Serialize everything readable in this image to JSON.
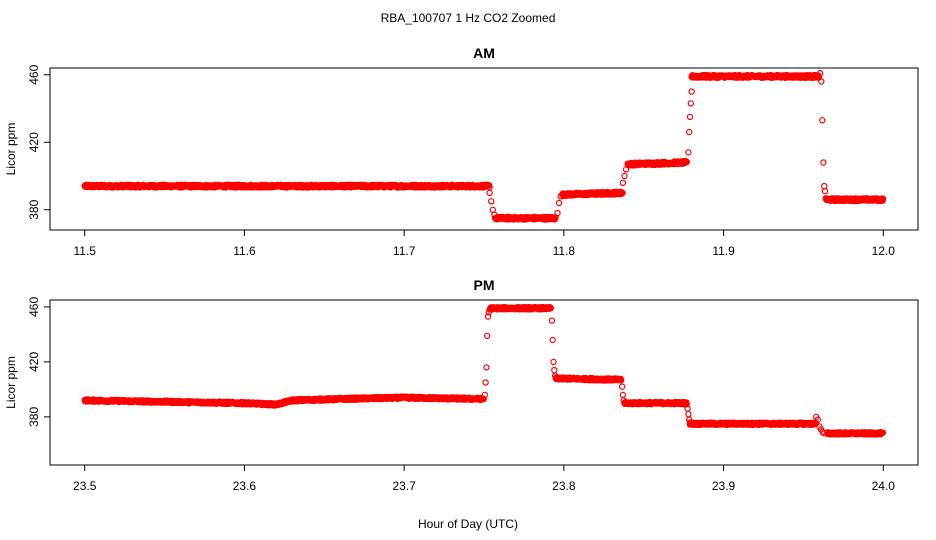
{
  "page": {
    "title": "RBA_100707  1 Hz CO2 Zoomed",
    "xlabel": "Hour of Day (UTC)"
  },
  "colors": {
    "points": "#ff0000",
    "axis": "#000000"
  },
  "chart_data": [
    {
      "type": "scatter",
      "title": "AM",
      "ylabel": "Licor ppm",
      "xlabel": "Hour of Day (UTC)",
      "xlim": [
        11.5,
        12.0
      ],
      "ylim": [
        368,
        464
      ],
      "x_ticks": [
        "11.5",
        "11.6",
        "11.7",
        "11.8",
        "11.9",
        "12.0"
      ],
      "y_ticks": [
        "380",
        "420",
        "460"
      ],
      "point_style": "open-circle",
      "series": [
        {
          "segments": [
            {
              "x": [
                11.5,
                11.6,
                11.7,
                11.7535
              ],
              "y": [
                394,
                394,
                394,
                394
              ]
            },
            {
              "x": [
                11.7535,
                11.7545,
                11.7555,
                11.7565
              ],
              "y": [
                390,
                385,
                380,
                377
              ]
            },
            {
              "x": [
                11.757,
                11.795
              ],
              "y": [
                375,
                375
              ]
            },
            {
              "x": [
                11.796,
                11.797,
                11.798
              ],
              "y": [
                378,
                384,
                388
              ]
            },
            {
              "x": [
                11.799,
                11.837
              ],
              "y": [
                389,
                390
              ]
            },
            {
              "x": [
                11.837,
                11.838,
                11.839
              ],
              "y": [
                396,
                400,
                404
              ]
            },
            {
              "x": [
                11.84,
                11.877
              ],
              "y": [
                407,
                408
              ]
            },
            {
              "x": [
                11.878,
                11.8785,
                11.879,
                11.8795,
                11.88
              ],
              "y": [
                414,
                426,
                435,
                443,
                450
              ]
            },
            {
              "x": [
                11.88,
                11.96
              ],
              "y": [
                459,
                459
              ]
            },
            {
              "x": [
                11.9605,
                11.9612,
                11.9618,
                11.9625,
                11.963,
                11.9635
              ],
              "y": [
                461,
                456,
                433,
                408,
                394,
                391
              ]
            },
            {
              "x": [
                11.964,
                12.0
              ],
              "y": [
                386,
                386
              ]
            }
          ]
        }
      ]
    },
    {
      "type": "scatter",
      "title": "PM",
      "ylabel": "Licor ppm",
      "xlabel": "Hour of Day (UTC)",
      "xlim": [
        23.5,
        24.0
      ],
      "ylim": [
        345,
        465
      ],
      "x_ticks": [
        "23.5",
        "23.6",
        "23.7",
        "23.8",
        "23.9",
        "24.0"
      ],
      "y_ticks": [
        "380",
        "420",
        "460"
      ],
      "point_style": "open-circle",
      "series": [
        {
          "segments": [
            {
              "x": [
                23.5,
                23.55,
                23.6,
                23.62,
                23.63,
                23.66,
                23.7,
                23.75
              ],
              "y": [
                392,
                391,
                390,
                389,
                392,
                393,
                394,
                393
              ]
            },
            {
              "x": [
                23.7505,
                23.751,
                23.7515,
                23.752,
                23.7525,
                23.753,
                23.7535
              ],
              "y": [
                396,
                405,
                416,
                439,
                453,
                456,
                458
              ]
            },
            {
              "x": [
                23.754,
                23.792
              ],
              "y": [
                459,
                459
              ]
            },
            {
              "x": [
                23.7925,
                23.793,
                23.7935,
                23.794,
                23.7945,
                23.795
              ],
              "y": [
                450,
                436,
                420,
                414,
                410,
                408
              ]
            },
            {
              "x": [
                23.795,
                23.836
              ],
              "y": [
                408,
                407
              ]
            },
            {
              "x": [
                23.8365,
                23.837,
                23.8375,
                23.838
              ],
              "y": [
                402,
                396,
                392,
                390
              ]
            },
            {
              "x": [
                23.838,
                23.877
              ],
              "y": [
                390,
                390
              ]
            },
            {
              "x": [
                23.8775,
                23.878,
                23.8785,
                23.879
              ],
              "y": [
                386,
                382,
                378,
                376
              ]
            },
            {
              "x": [
                23.879,
                23.958
              ],
              "y": [
                375,
                375
              ]
            },
            {
              "x": [
                23.958,
                23.959,
                23.96,
                23.961,
                23.962,
                23.963,
                23.965
              ],
              "y": [
                380,
                378,
                373,
                371,
                369,
                368,
                368
              ]
            },
            {
              "x": [
                23.965,
                24.0
              ],
              "y": [
                368,
                368
              ]
            }
          ]
        }
      ]
    }
  ]
}
